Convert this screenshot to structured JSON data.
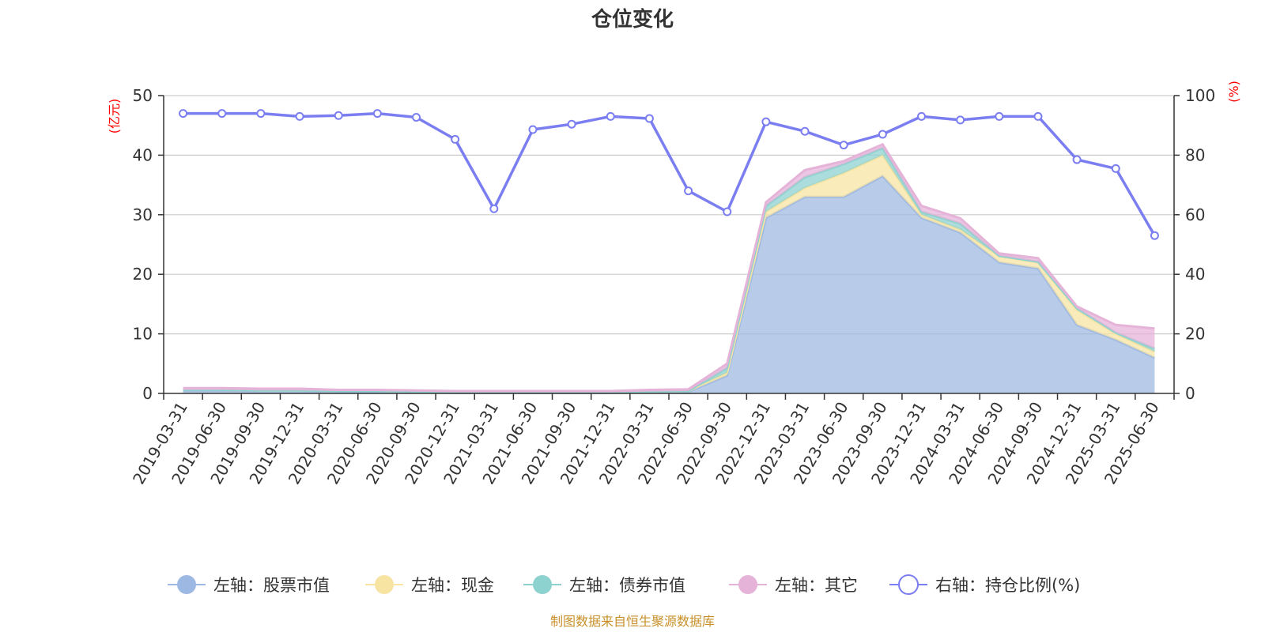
{
  "title": "仓位变化",
  "y_left_unit": "(亿元)",
  "y_right_unit": "(%)",
  "source": "制图数据来自恒生聚源数据库",
  "chart_data": {
    "type": "area",
    "categories": [
      "2019-03-31",
      "2019-06-30",
      "2019-09-30",
      "2019-12-31",
      "2020-03-31",
      "2020-06-30",
      "2020-09-30",
      "2020-12-31",
      "2021-03-31",
      "2021-06-30",
      "2021-09-30",
      "2021-12-31",
      "2022-03-31",
      "2022-06-30",
      "2022-09-30",
      "2022-12-31",
      "2023-03-31",
      "2023-06-30",
      "2023-09-30",
      "2023-12-31",
      "2024-03-31",
      "2024-06-30",
      "2024-09-30",
      "2024-12-31",
      "2025-03-31",
      "2025-06-30"
    ],
    "y_left_ticks": [
      "0",
      "10",
      "20",
      "30",
      "40",
      "50"
    ],
    "y_right_ticks": [
      "0",
      "20",
      "40",
      "60",
      "80",
      "100"
    ],
    "ylim_left": [
      0,
      50
    ],
    "ylim_right": [
      0,
      100
    ],
    "grid": true,
    "legend_position": "bottom",
    "series": [
      {
        "name": "左轴：股票市值",
        "axis": "left",
        "type": "stacked-area",
        "color": "#9db8e2",
        "values": [
          0.5,
          0.5,
          0.4,
          0.4,
          0.3,
          0.3,
          0.2,
          0.1,
          0.1,
          0.1,
          0.1,
          0.1,
          0.2,
          0.3,
          3.0,
          29.5,
          33.0,
          33.0,
          36.5,
          29.5,
          27.0,
          22.0,
          21.0,
          11.5,
          9.0,
          6.0
        ]
      },
      {
        "name": "左轴：现金",
        "axis": "left",
        "type": "stacked-area",
        "color": "#f7e4a3",
        "values": [
          0.1,
          0.1,
          0.1,
          0.1,
          0.1,
          0.1,
          0.1,
          0.1,
          0.1,
          0.1,
          0.1,
          0.1,
          0.1,
          0.1,
          0.5,
          1.0,
          1.5,
          4.0,
          3.5,
          0.5,
          0.5,
          1.0,
          1.0,
          2.5,
          1.0,
          1.0
        ]
      },
      {
        "name": "左轴：债券市值",
        "axis": "left",
        "type": "stacked-area",
        "color": "#8ed2d0",
        "values": [
          0,
          0,
          0,
          0,
          0,
          0,
          0,
          0,
          0,
          0,
          0,
          0,
          0,
          0,
          0.8,
          1.0,
          1.8,
          1.5,
          1.2,
          0.5,
          1.0,
          0.1,
          0.1,
          0.3,
          0.2,
          0.5
        ]
      },
      {
        "name": "左轴：其它",
        "axis": "left",
        "type": "stacked-area",
        "color": "#e5b3d8",
        "values": [
          0.3,
          0.3,
          0.3,
          0.3,
          0.2,
          0.2,
          0.2,
          0.2,
          0.2,
          0.2,
          0.2,
          0.2,
          0.3,
          0.3,
          0.7,
          0.6,
          1.2,
          0.5,
          0.6,
          1.0,
          0.9,
          0.4,
          0.6,
          0.3,
          1.3,
          3.4
        ]
      },
      {
        "name": "右轴：持仓比例(%)",
        "axis": "right",
        "type": "line",
        "color": "#7b7ef0",
        "values": [
          94,
          94,
          94,
          93,
          93.3,
          94,
          92.7,
          85.3,
          62,
          88.6,
          90.4,
          93,
          92.3,
          68,
          61,
          91.2,
          88,
          83.4,
          87,
          93,
          91.8,
          93,
          93,
          78.5,
          75.5,
          53
        ]
      }
    ]
  }
}
